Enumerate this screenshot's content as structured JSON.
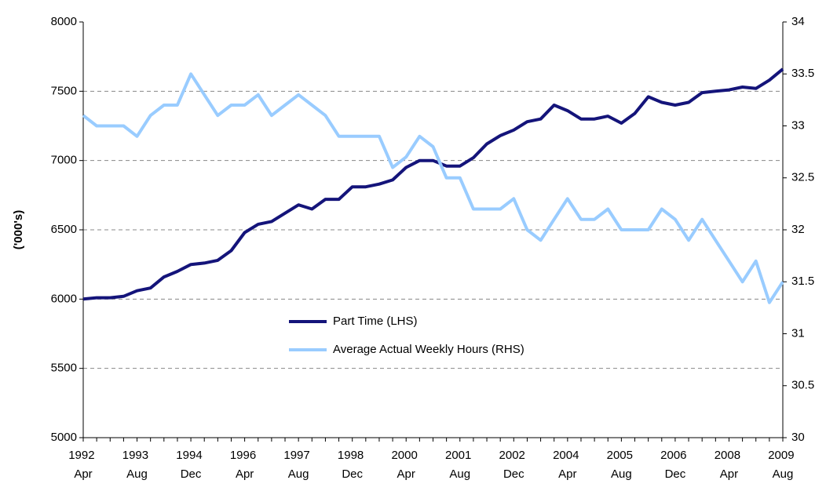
{
  "chart_data": {
    "type": "line",
    "y_label": "('000's)",
    "categories": [
      "1992 Apr",
      null,
      null,
      null,
      "1993 Aug",
      null,
      null,
      null,
      "1994 Dec",
      null,
      null,
      null,
      "1996 Apr",
      null,
      null,
      null,
      "1997 Aug",
      null,
      null,
      null,
      "1998 Dec",
      null,
      null,
      null,
      "2000 Apr",
      null,
      null,
      null,
      "2001 Aug",
      null,
      null,
      null,
      "2002 Dec",
      null,
      null,
      null,
      "2004 Apr",
      null,
      null,
      null,
      "2005 Aug",
      null,
      null,
      null,
      "2006 Dec",
      null,
      null,
      null,
      "2008 Apr",
      null,
      null,
      null,
      "2009 Aug"
    ],
    "series": [
      {
        "name": "Part Time (LHS)",
        "color": "#14147a",
        "axis": "y",
        "values": [
          6000,
          6010,
          6010,
          6020,
          6060,
          6080,
          6160,
          6200,
          6250,
          6260,
          6280,
          6350,
          6480,
          6540,
          6560,
          6620,
          6680,
          6650,
          6720,
          6720,
          6810,
          6810,
          6830,
          6860,
          6950,
          7000,
          7000,
          6960,
          6960,
          7020,
          7120,
          7180,
          7220,
          7280,
          7300,
          7400,
          7360,
          7300,
          7300,
          7320,
          7270,
          7340,
          7460,
          7420,
          7400,
          7420,
          7490,
          7500,
          7510,
          7530,
          7520,
          7580,
          7660
        ]
      },
      {
        "name": "Average Actual Weekly Hours (RHS)",
        "color": "#99ccff",
        "axis": "y2",
        "values": [
          33.1,
          33.0,
          33.0,
          33.0,
          32.9,
          33.1,
          33.2,
          33.2,
          33.5,
          33.3,
          33.1,
          33.2,
          33.2,
          33.3,
          33.1,
          33.2,
          33.3,
          33.2,
          33.1,
          32.9,
          32.9,
          32.9,
          32.9,
          32.6,
          32.7,
          32.9,
          32.8,
          32.5,
          32.5,
          32.2,
          32.2,
          32.2,
          32.3,
          32.0,
          31.9,
          32.1,
          32.3,
          32.1,
          32.1,
          32.2,
          32.0,
          32.0,
          32.0,
          32.2,
          32.1,
          31.9,
          32.1,
          31.9,
          31.7,
          31.5,
          31.7,
          31.3,
          31.5
        ]
      }
    ],
    "ylim": [
      5000,
      8000
    ],
    "yticks": [
      5000,
      5500,
      6000,
      6500,
      7000,
      7500,
      8000
    ],
    "y2lim": [
      30,
      34
    ],
    "y2ticks": [
      30,
      30.5,
      31,
      31.5,
      32,
      32.5,
      33,
      33.5,
      34
    ],
    "grid": true
  }
}
